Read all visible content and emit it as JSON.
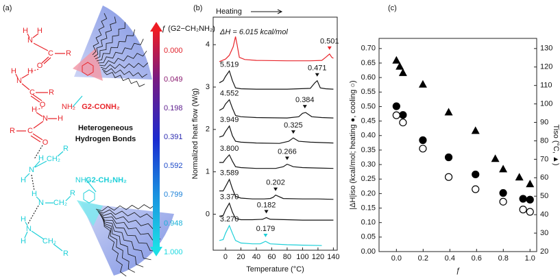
{
  "panel_labels": [
    "(a)",
    "(b)",
    "(c)"
  ],
  "diagram": {
    "colorbar": {
      "title": "ƒ (G2−CH₂NH₂)",
      "labels": [
        "0.000",
        "0.049",
        "0.198",
        "0.391",
        "0.592",
        "0.799",
        "0.948",
        "1.000"
      ],
      "label_colors": [
        "#e0202a",
        "#8a1a70",
        "#5a1a8c",
        "#2a2ab0",
        "#1a48c8",
        "#1a80d8",
        "#18b0d8",
        "#18d8e0"
      ]
    },
    "caption": [
      "Heterogeneous",
      "Hydrogen Bonds"
    ],
    "red": {
      "color": "#e8242a",
      "atoms": [
        "H",
        "N",
        "H",
        "C",
        "R",
        "O",
        "H",
        "N",
        "H",
        "C",
        "R",
        "O",
        "H",
        "N",
        "H",
        "C",
        "R",
        "O"
      ],
      "end_group": "NH₂",
      "name": "G2-CONH₂"
    },
    "cyan": {
      "color": "#1ccfd8",
      "atoms": [
        "R",
        "H",
        "N",
        "CH₂",
        "H",
        "H",
        "N",
        "CH₂",
        "R",
        "H",
        "N",
        "H",
        "CH₂",
        "R"
      ],
      "end_group": "NH₂",
      "name": "G2-CH₂NH₂"
    }
  },
  "chart_data": [
    {
      "type": "line",
      "heating_label": "Heating",
      "annotation": "ΔH = 6.015 kcal/mol",
      "x_label": "Temperature (°C)",
      "y_label": "Normalized heat flow (W/g)",
      "xlim": [
        -16,
        145
      ],
      "ylim": [
        -0.85,
        4.65
      ],
      "xticks": [
        0,
        20,
        40,
        60,
        80,
        100,
        120,
        140
      ],
      "yticks": [
        0,
        1,
        2,
        3,
        4
      ],
      "series": [
        {
          "color": "#1ccfd8",
          "peak_label": "3.270",
          "event_label": "0.179",
          "event_T": 52,
          "x": [
            -8,
            -3,
            0,
            5,
            9,
            13,
            20,
            35,
            45,
            52,
            58,
            80,
            100,
            125
          ],
          "values": [
            -0.62,
            -0.6,
            -0.45,
            -0.27,
            -0.45,
            -0.62,
            -0.68,
            -0.7,
            -0.7,
            -0.64,
            -0.7,
            -0.72,
            -0.73,
            -0.74
          ]
        },
        {
          "color": "#111111",
          "peak_label": "3.370",
          "event_label": "0.182",
          "event_T": 53,
          "x": [
            -8,
            -3,
            0,
            5,
            9,
            13,
            20,
            35,
            48,
            53,
            58,
            80,
            100,
            120,
            140
          ],
          "values": [
            -0.05,
            -0.03,
            0.1,
            0.26,
            0.05,
            -0.1,
            -0.13,
            -0.13,
            -0.12,
            -0.08,
            -0.12,
            -0.13,
            -0.14,
            -0.14,
            -0.14
          ]
        },
        {
          "color": "#111111",
          "peak_label": "3.589",
          "event_label": "0.202",
          "event_T": 65,
          "x": [
            -8,
            -3,
            0,
            5,
            9,
            13,
            20,
            35,
            50,
            58,
            62,
            65,
            75,
            100,
            120,
            140
          ],
          "values": [
            0.55,
            0.55,
            0.65,
            0.82,
            0.6,
            0.42,
            0.38,
            0.36,
            0.36,
            0.37,
            0.4,
            0.45,
            0.37,
            0.36,
            0.36,
            0.35
          ]
        },
        {
          "color": "#111111",
          "peak_label": "3.800",
          "event_label": "0.266",
          "event_T": 80,
          "x": [
            -8,
            -3,
            0,
            5,
            9,
            13,
            20,
            40,
            65,
            75,
            80,
            88,
            100,
            120,
            140
          ],
          "values": [
            1.22,
            1.22,
            1.3,
            1.4,
            1.25,
            1.12,
            1.1,
            1.08,
            1.08,
            1.12,
            1.18,
            1.12,
            1.1,
            1.09,
            1.08
          ]
        },
        {
          "color": "#111111",
          "peak_label": "3.949",
          "event_label": "0.325",
          "event_T": 88,
          "x": [
            -8,
            -3,
            0,
            5,
            9,
            13,
            20,
            40,
            70,
            82,
            88,
            95,
            110,
            125,
            140
          ],
          "values": [
            1.82,
            1.85,
            1.95,
            2.08,
            1.85,
            1.72,
            1.7,
            1.68,
            1.67,
            1.72,
            1.8,
            1.72,
            1.7,
            1.69,
            1.68
          ]
        },
        {
          "color": "#111111",
          "peak_label": "4.552",
          "event_label": "0.384",
          "event_T": 103,
          "x": [
            -8,
            -3,
            0,
            5,
            9,
            13,
            20,
            40,
            80,
            95,
            100,
            104,
            112,
            125,
            140
          ],
          "values": [
            2.45,
            2.5,
            2.6,
            2.7,
            2.5,
            2.33,
            2.3,
            2.28,
            2.27,
            2.3,
            2.38,
            2.4,
            2.3,
            2.28,
            2.27
          ]
        },
        {
          "color": "#111111",
          "peak_label": "5.519",
          "event_label": "0.471",
          "event_T": 119,
          "x": [
            -8,
            -3,
            0,
            5,
            9,
            13,
            20,
            40,
            80,
            110,
            116,
            119,
            123,
            130,
            140
          ],
          "values": [
            3.1,
            3.15,
            3.25,
            3.38,
            3.15,
            2.98,
            2.96,
            2.95,
            2.95,
            2.97,
            3.1,
            3.15,
            2.98,
            2.96,
            2.95
          ]
        },
        {
          "color": "#e8242a",
          "event_label": "0.501",
          "event_T": 135,
          "x": [
            -8,
            0,
            5,
            10,
            13,
            15,
            18,
            25,
            40,
            80,
            110,
            125,
            130,
            135,
            138,
            140
          ],
          "values": [
            3.6,
            3.66,
            3.75,
            3.95,
            4.19,
            4.0,
            3.7,
            3.65,
            3.63,
            3.62,
            3.62,
            3.63,
            3.7,
            3.78,
            3.7,
            3.68
          ]
        }
      ]
    },
    {
      "type": "scatter",
      "x_label": "ƒ",
      "y_label": "|ΔH|iso (kcal/mol; heating ●, cooling ○)",
      "y2_label": "Tiso (°C, ▲)",
      "xlim": [
        -0.13,
        1.05
      ],
      "ylim": [
        0,
        0.735
      ],
      "y2lim": [
        20,
        135.5
      ],
      "xticks": [
        {
          "value": 0,
          "label": "0.0"
        },
        {
          "value": 0.2,
          "label": "0.2"
        },
        {
          "value": 0.4,
          "label": "0.4"
        },
        {
          "value": 0.6,
          "label": "0.6"
        },
        {
          "value": 0.8,
          "label": "0.8"
        },
        {
          "value": 1,
          "label": "1.0"
        }
      ],
      "yticks": [
        {
          "value": 0,
          "label": "0.00"
        },
        {
          "value": 0.05,
          "label": "0.05"
        },
        {
          "value": 0.1,
          "label": "0.10"
        },
        {
          "value": 0.15,
          "label": "0.15"
        },
        {
          "value": 0.2,
          "label": "0.20"
        },
        {
          "value": 0.25,
          "label": "0.25"
        },
        {
          "value": 0.3,
          "label": "0.30"
        },
        {
          "value": 0.35,
          "label": "0.35"
        },
        {
          "value": 0.4,
          "label": "0.40"
        },
        {
          "value": 0.45,
          "label": "0.45"
        },
        {
          "value": 0.5,
          "label": "0.50"
        },
        {
          "value": 0.55,
          "label": "0.55"
        },
        {
          "value": 0.6,
          "label": "0.60"
        },
        {
          "value": 0.65,
          "label": "0.65"
        },
        {
          "value": 0.7,
          "label": "0.70"
        }
      ],
      "y2ticks": [
        20,
        30,
        40,
        50,
        60,
        70,
        80,
        90,
        100,
        110,
        120,
        130
      ],
      "series": [
        {
          "marker": "circle",
          "filled": true,
          "color": "#000000",
          "x": [
            0,
            0.049,
            0.198,
            0.391,
            0.592,
            0.799,
            0.948,
            1.0
          ],
          "values": [
            0.501,
            0.471,
            0.384,
            0.325,
            0.266,
            0.202,
            0.182,
            0.179
          ]
        },
        {
          "marker": "circle",
          "filled": false,
          "color": "#000000",
          "x": [
            0,
            0.049,
            0.198,
            0.391,
            0.592,
            0.799,
            0.948,
            1.0
          ],
          "values": [
            0.47,
            0.445,
            0.355,
            0.257,
            0.215,
            0.172,
            0.145,
            0.137
          ]
        },
        {
          "marker": "triangle",
          "filled": true,
          "color": "#000000",
          "axis": "y2",
          "x": [
            0,
            0.025,
            0.049,
            0.198,
            0.391,
            0.592,
            0.74,
            0.799,
            0.92,
            1.0
          ],
          "values": [
            123.7,
            120.4,
            117,
            110.7,
            95.6,
            85.6,
            70.4,
            64.8,
            60.4,
            56.7
          ]
        }
      ]
    }
  ]
}
